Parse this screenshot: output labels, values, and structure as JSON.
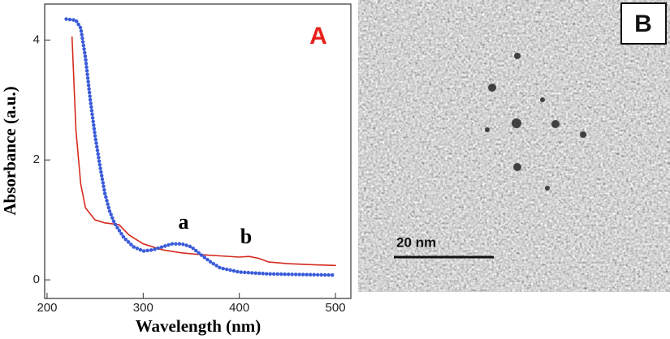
{
  "chart_data": {
    "type": "line",
    "xlabel": "Wavelength (nm)",
    "ylabel": "Absorbance (a.u.)",
    "xlim": [
      197.5,
      516
    ],
    "ylim": [
      -0.31,
      4.6
    ],
    "xticks": [
      200,
      300,
      400,
      500
    ],
    "yticks": [
      0,
      2,
      4
    ],
    "series": [
      {
        "color": "#d62a1e",
        "style": "solid",
        "x": [
          226,
          230,
          235,
          240,
          250,
          260,
          275,
          285,
          300,
          320,
          340,
          360,
          380,
          400,
          410,
          420,
          430,
          450,
          480,
          500
        ],
        "values": [
          4.05,
          2.5,
          1.6,
          1.2,
          1.0,
          0.95,
          0.92,
          0.75,
          0.6,
          0.5,
          0.45,
          0.42,
          0.4,
          0.38,
          0.39,
          0.36,
          0.3,
          0.27,
          0.25,
          0.24
        ]
      },
      {
        "color": "#3a5bd9",
        "style": "dotted",
        "x": [
          220,
          230,
          235,
          240,
          245,
          250,
          255,
          260,
          265,
          270,
          280,
          290,
          300,
          310,
          320,
          330,
          340,
          350,
          360,
          370,
          380,
          400,
          430,
          460,
          500
        ],
        "values": [
          4.35,
          4.33,
          4.2,
          3.7,
          3.0,
          2.4,
          1.9,
          1.45,
          1.15,
          0.95,
          0.7,
          0.55,
          0.48,
          0.5,
          0.55,
          0.6,
          0.6,
          0.55,
          0.42,
          0.3,
          0.2,
          0.13,
          0.1,
          0.09,
          0.08
        ]
      }
    ],
    "annotations": [
      "a",
      "b"
    ],
    "panel_label": "A"
  },
  "image_panel": {
    "panel_label": "B",
    "scale_bar": "20 nm"
  }
}
